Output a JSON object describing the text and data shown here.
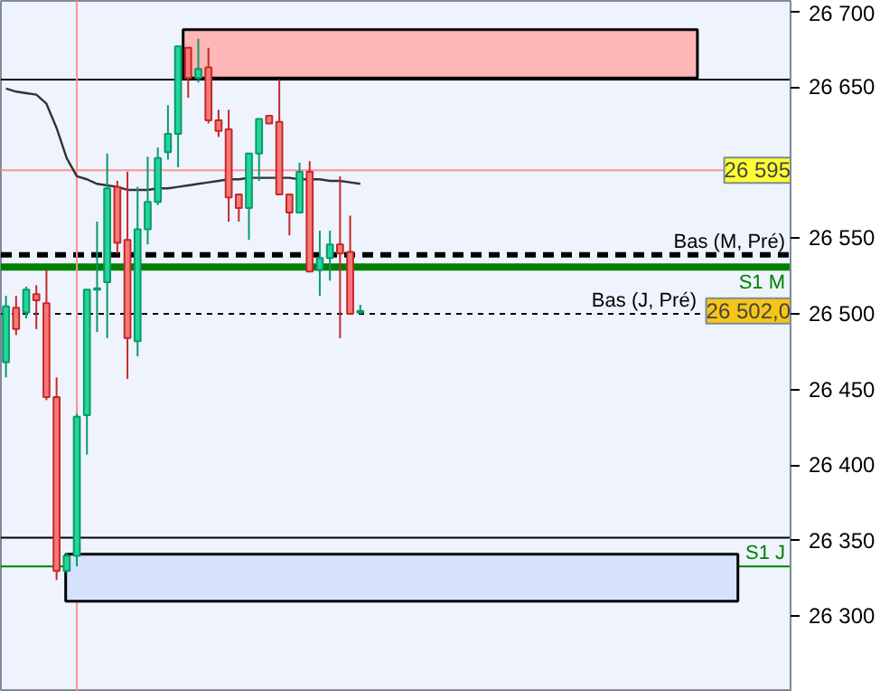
{
  "chart_data": {
    "type": "candlestick",
    "categories": [
      null,
      null,
      null,
      null,
      null,
      null,
      null,
      null,
      null,
      null,
      null,
      null,
      null,
      null,
      null,
      null,
      null,
      null,
      null,
      null,
      null,
      null,
      null,
      null,
      null,
      null,
      null,
      null,
      null,
      null,
      null,
      null,
      null,
      null,
      null,
      null,
      null,
      null,
      null,
      null,
      null,
      null,
      null,
      null,
      null,
      null,
      null,
      null,
      null,
      null,
      null,
      null,
      null,
      null,
      null,
      null,
      null,
      null,
      null,
      null,
      null,
      null,
      null,
      null,
      null,
      null,
      null,
      null,
      null,
      null,
      null,
      null,
      null,
      null,
      null,
      null,
      null,
      null
    ],
    "ohlc": [
      [
        26468,
        26512,
        26458,
        26505
      ],
      [
        26504,
        26512,
        26486,
        26490
      ],
      [
        26501,
        26518,
        26497,
        26516
      ],
      [
        26513,
        26519,
        26490,
        26509
      ],
      [
        26507,
        26529,
        26443,
        26445
      ],
      [
        26445,
        26458,
        26324,
        26330
      ],
      [
        26330,
        26342,
        26329,
        26340
      ],
      [
        26340,
        26434,
        26333,
        26432
      ],
      [
        26433,
        26516,
        26407,
        26516
      ],
      [
        26516,
        26561,
        26488,
        26517
      ],
      [
        26521,
        26606,
        26484,
        26583
      ],
      [
        26584,
        26588,
        26540,
        26547
      ],
      [
        26549,
        26594,
        26457,
        26484
      ],
      [
        26482,
        26584,
        26472,
        26556
      ],
      [
        26556,
        26604,
        26546,
        26574
      ],
      [
        26574,
        26610,
        26572,
        26603
      ],
      [
        26607,
        26638,
        26602,
        26619
      ],
      [
        26619,
        26677,
        26597,
        26677
      ],
      [
        26676,
        26676,
        26643,
        26656
      ],
      [
        26656,
        26682,
        26653,
        26662
      ],
      [
        26663,
        26676,
        26626,
        26628
      ],
      [
        26628,
        26635,
        26617,
        26621
      ],
      [
        26622,
        26635,
        26561,
        26577
      ],
      [
        26579,
        26579,
        26561,
        26570
      ],
      [
        26570,
        26606,
        26549,
        26606
      ],
      [
        26606,
        26629,
        26588,
        26629
      ],
      [
        26631,
        26631,
        26626,
        26626
      ],
      [
        26627,
        26655,
        26579,
        26579
      ],
      [
        26579,
        26579,
        26552,
        26567
      ],
      [
        26567,
        26600,
        26567,
        26594
      ],
      [
        26594,
        26601,
        26528,
        26528
      ],
      [
        26529,
        26555,
        26512,
        26537
      ],
      [
        26537,
        26555,
        26522,
        26546
      ],
      [
        26546,
        26591,
        26484,
        26540
      ],
      [
        26541,
        26565,
        26500,
        26500
      ],
      [
        26501,
        26506,
        26500,
        26502
      ],
      null,
      null,
      null,
      null,
      null,
      null,
      null,
      null,
      null,
      null,
      null,
      null,
      null,
      null,
      null,
      null,
      null,
      null,
      null,
      null,
      null,
      null,
      null,
      null,
      null,
      null,
      null,
      null,
      null,
      null,
      null,
      null,
      null,
      null,
      null,
      null,
      null,
      null,
      null,
      null,
      null,
      null
    ],
    "series": [
      {
        "type": "line",
        "color": "#333333",
        "values": [
          26649,
          26647,
          26646,
          26645,
          26639,
          26623,
          26603,
          26591,
          26589,
          26586,
          26585,
          26584,
          26582,
          26582,
          26582,
          26583,
          26583,
          26584,
          26585,
          26586,
          26587,
          26588,
          26589,
          26589,
          26590,
          26590,
          26590,
          26590,
          26590,
          26589,
          26589,
          26589,
          26588,
          26588,
          26587,
          26586,
          null,
          null,
          null,
          null,
          null,
          null,
          null,
          null,
          null,
          null,
          null,
          null,
          null,
          null,
          null,
          null,
          null,
          null,
          null,
          null,
          null,
          null,
          null,
          null,
          null,
          null,
          null,
          null,
          null,
          null,
          null,
          null,
          null,
          null,
          null,
          null,
          null,
          null,
          null,
          null,
          null,
          null
        ]
      }
    ],
    "colors": [
      "#22d69b",
      "#f87878",
      "#22d69b",
      "#f87878",
      "#f87878",
      "#f87878",
      "#22d69b",
      "#22d69b",
      "#22d69b",
      "#22d69b",
      "#22d69b",
      "#f87878",
      "#f87878",
      "#22d69b",
      "#22d69b",
      "#22d69b",
      "#22d69b",
      "#22d69b",
      "#f87878",
      "#22d69b",
      "#f87878",
      "#f87878",
      "#f87878",
      "#f87878",
      "#22d69b",
      "#22d69b",
      "#f87878",
      "#f87878",
      "#f87878",
      "#22d69b",
      "#f87878",
      "#22d69b",
      "#22d69b",
      "#f87878",
      "#f87878",
      "#22d69b",
      null,
      null,
      null,
      null,
      null,
      null,
      null,
      null,
      null,
      null,
      null,
      null,
      null,
      null,
      null,
      null,
      null,
      null,
      null,
      null,
      null,
      null,
      null,
      null,
      null,
      null,
      null,
      null,
      null,
      null,
      null,
      null,
      null,
      null,
      null,
      null,
      null,
      null,
      null,
      null,
      null,
      null
    ],
    "ylim": [
      26250,
      26707
    ],
    "yticks": [
      {
        "value": 26300,
        "label": "26 300"
      },
      {
        "value": 26350,
        "label": "26 350"
      },
      {
        "value": 26400,
        "label": "26 400"
      },
      {
        "value": 26450,
        "label": "26 450"
      },
      {
        "value": 26500,
        "label": "26 500"
      },
      {
        "value": 26550,
        "label": "26 550"
      },
      {
        "value": 26650,
        "label": "26 650"
      },
      {
        "value": 26700,
        "label": "26 700"
      }
    ],
    "tick_labels": "y",
    "grid": false,
    "ref_lines": [
      {
        "axis": "y",
        "value": 26595,
        "label": "26 595",
        "color": "#ff9090",
        "line_style": "solid"
      },
      {
        "axis": "y",
        "value": 26655,
        "color": "#000000",
        "line_style": "solid"
      },
      {
        "axis": "y",
        "value": 26539,
        "label": "Bas (M, Pré)",
        "color": "#000000",
        "line_style": "dashed"
      },
      {
        "axis": "y",
        "value": 26531,
        "label": "S1 M",
        "color": "#008000",
        "line_style": "solid"
      },
      {
        "axis": "y",
        "value": 26500,
        "label": "Bas (J, Pré)",
        "color": "#000000",
        "line_style": "dotted"
      },
      {
        "axis": "y",
        "value": 26352,
        "color": "#000000",
        "line_style": "solid"
      },
      {
        "axis": "y",
        "value": 26333,
        "label": "S1 J",
        "color": "#008000",
        "line_style": "solid"
      }
    ],
    "bands": [
      {
        "axis": "y",
        "from": 26656,
        "to": 26688,
        "color": "#ffb6b6"
      },
      {
        "axis": "y",
        "from": 26310,
        "to": 26341,
        "color": "#d6e2fc"
      }
    ],
    "annotations": [
      "26 502,0"
    ]
  }
}
